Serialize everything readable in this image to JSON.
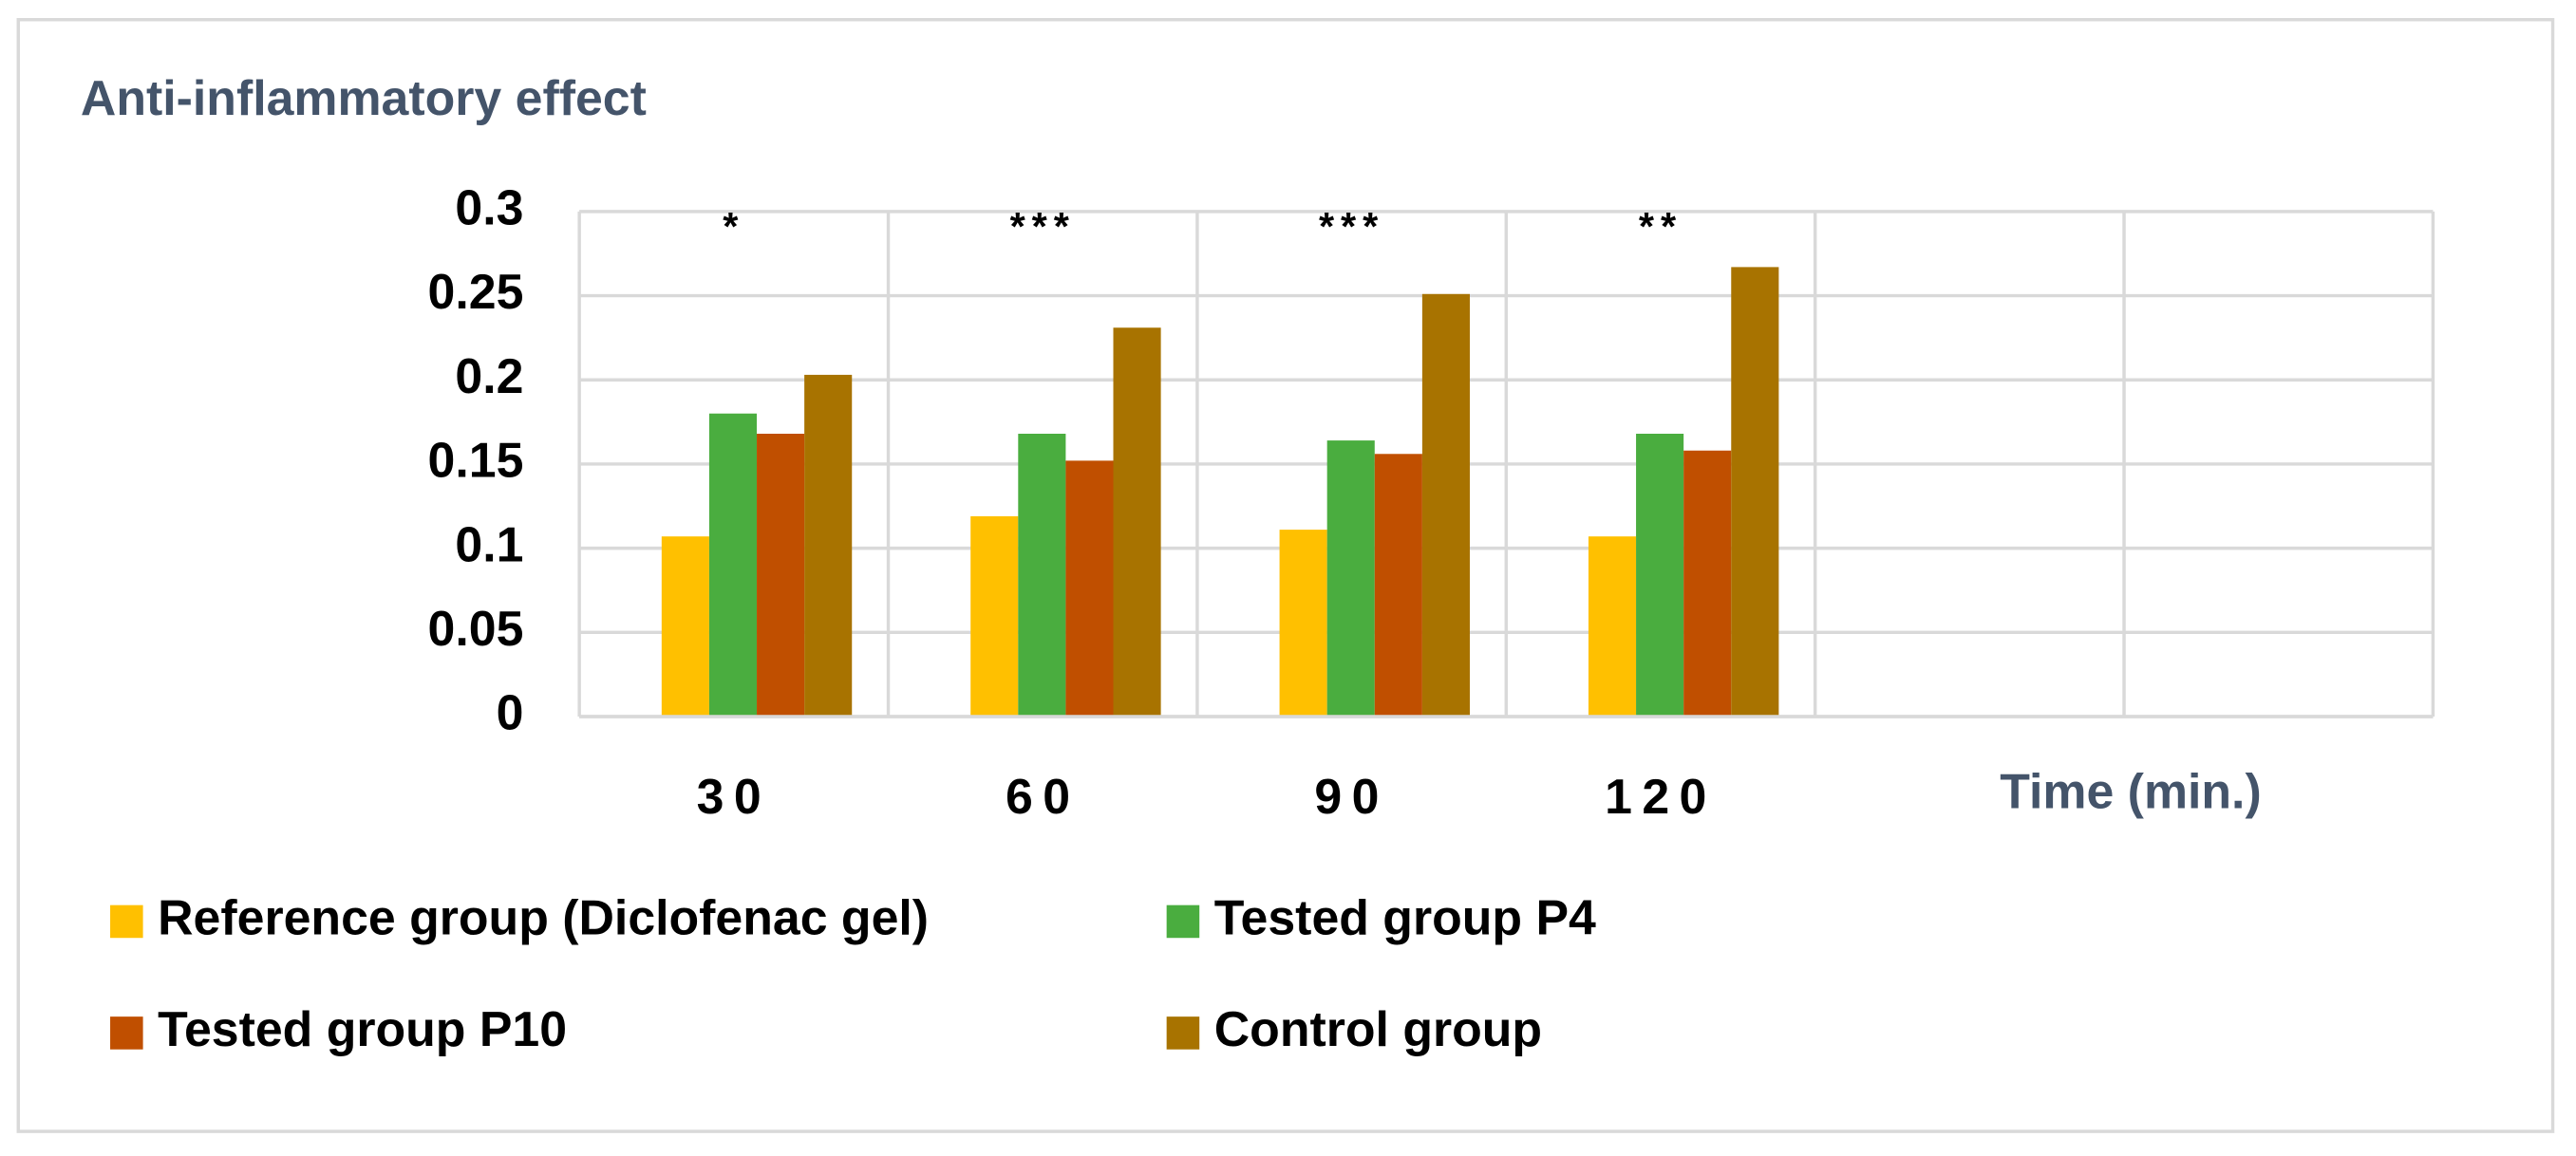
{
  "chart_data": {
    "type": "bar",
    "title": "Anti-inflammatory effect",
    "x_label": "Time (min.)",
    "categories": [
      "30",
      "60",
      "90",
      "120",
      null,
      null
    ],
    "series": [
      {
        "name": "Reference group (Diclofenac gel)",
        "color": "#ffc000",
        "values": [
          0.107,
          0.119,
          0.111,
          0.107,
          null,
          null
        ]
      },
      {
        "name": "Tested group P4",
        "color": "#4aad3f",
        "values": [
          0.18,
          0.168,
          0.164,
          0.168,
          null,
          null
        ]
      },
      {
        "name": "Tested group P10",
        "color": "#c04f00",
        "values": [
          0.168,
          0.152,
          0.156,
          0.158,
          null,
          null
        ]
      },
      {
        "name": "Control group",
        "color": "#a87300",
        "values": [
          0.203,
          0.231,
          0.251,
          0.267,
          null,
          null
        ]
      }
    ],
    "annotations": [
      "*",
      "***",
      "***",
      "**"
    ],
    "ylim": [
      0,
      0.3
    ],
    "yticks": [
      0,
      0.05,
      0.1,
      0.15,
      0.2,
      0.25,
      0.3
    ],
    "grid": true
  }
}
